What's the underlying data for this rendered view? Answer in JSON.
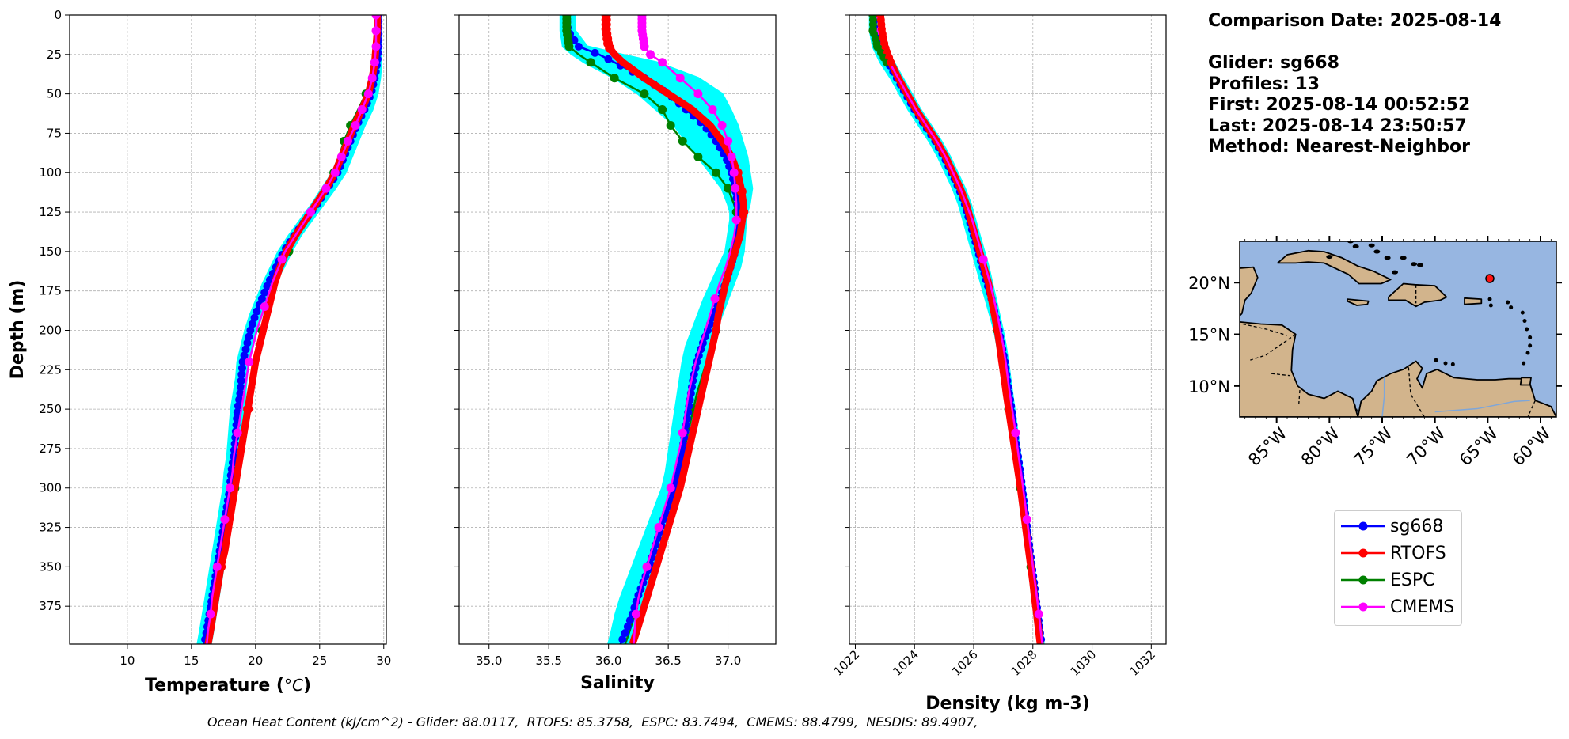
{
  "info": {
    "comparison": "Comparison Date: 2025-08-14",
    "glider": "Glider: sg668",
    "profiles": "Profiles: 13",
    "first": "First: 2025-08-14 00:52:52",
    "last": "Last: 2025-08-14 23:50:57",
    "method": "Method: Nearest-Neighbor"
  },
  "footer": "Ocean Heat Content (kJ/cm^2) - Glider: 88.0117,  RTOFS: 85.3758,  ESPC: 83.7494,  CMEMS: 88.4799,  NESDIS: 89.4907,",
  "colors": {
    "glider": "#0000ff",
    "rtofs": "#ff0000",
    "espc": "#008000",
    "cmems": "#ff00ff",
    "envelope": "#00ffff",
    "ocean": "#97b6e1",
    "land": "#d2b48c"
  },
  "legend": [
    {
      "label": "sg668",
      "color": "#0000ff"
    },
    {
      "label": "RTOFS",
      "color": "#ff0000"
    },
    {
      "label": "ESPC",
      "color": "#008000"
    },
    {
      "label": "CMEMS",
      "color": "#ff00ff"
    }
  ],
  "chart_data": [
    {
      "type": "line",
      "ylabel": "Depth (m)",
      "xlabel_main": "Temperature (",
      "xlabel_unit": "°C",
      "xlabel_end": ")",
      "xlim": [
        5.5,
        30.2
      ],
      "ylim": [
        399,
        0
      ],
      "xticks": [
        10,
        15,
        20,
        25,
        30
      ],
      "yticks": [
        0,
        25,
        50,
        75,
        100,
        125,
        150,
        175,
        200,
        225,
        250,
        275,
        300,
        325,
        350,
        375
      ],
      "depth": [
        0,
        10,
        20,
        30,
        40,
        50,
        60,
        70,
        80,
        90,
        100,
        110,
        120,
        130,
        140,
        150,
        160,
        170,
        180,
        190,
        200,
        210,
        220,
        230,
        240,
        250,
        260,
        270,
        280,
        290,
        300,
        310,
        320,
        330,
        340,
        350,
        360,
        370,
        380,
        390,
        399
      ],
      "glider": [
        29.6,
        29.6,
        29.6,
        29.5,
        29.3,
        29.0,
        28.5,
        27.9,
        27.4,
        26.9,
        26.4,
        25.6,
        24.8,
        23.9,
        23.0,
        22.2,
        21.6,
        21.0,
        20.5,
        20.0,
        19.6,
        19.3,
        19.0,
        18.9,
        18.8,
        18.6,
        18.5,
        18.4,
        18.3,
        18.1,
        18.0,
        17.8,
        17.6,
        17.4,
        17.2,
        17.0,
        16.8,
        16.6,
        16.4,
        16.2,
        16.0
      ],
      "rtofs": [
        29.5,
        29.5,
        29.4,
        29.3,
        29.1,
        28.8,
        28.3,
        27.7,
        27.2,
        26.7,
        26.2,
        25.5,
        24.7,
        23.9,
        23.1,
        22.4,
        21.9,
        21.5,
        21.2,
        20.9,
        20.6,
        20.3,
        20.0,
        19.8,
        19.6,
        19.4,
        19.2,
        19.0,
        18.8,
        18.6,
        18.4,
        18.2,
        18.0,
        17.8,
        17.6,
        17.3,
        17.1,
        16.9,
        16.7,
        16.5,
        16.3
      ],
      "espc": [
        null,
        null,
        null,
        29.3,
        29.0,
        28.6,
        28.0,
        27.4,
        26.9,
        26.5,
        26.1,
        25.4,
        24.7,
        24.0,
        23.3,
        22.6,
        22.0,
        21.5,
        21.1,
        20.8,
        20.5,
        20.2,
        20.0,
        19.8,
        19.6,
        19.4,
        19.2,
        19.0,
        18.8,
        18.6,
        18.4,
        18.2,
        18.0,
        17.8,
        17.6,
        17.3,
        17.1,
        16.9,
        16.7,
        16.5,
        16.3
      ],
      "espc_markers": [
        30,
        50,
        70,
        80,
        100,
        150,
        200,
        250,
        300,
        350
      ],
      "cmems": [
        29.4,
        29.4,
        29.4,
        29.3,
        29.1,
        28.8,
        28.3,
        27.8,
        27.2,
        26.7,
        26.2,
        25.5,
        24.7,
        23.9,
        23.1,
        22.3,
        21.8,
        21.3,
        20.9,
        20.5,
        20.1,
        19.8,
        19.5,
        19.3,
        19.1,
        18.9,
        18.7,
        18.5,
        18.3,
        18.2,
        18.0,
        17.8,
        17.6,
        17.4,
        17.2,
        17.0,
        16.8,
        16.6,
        16.5,
        16.3,
        16.2
      ],
      "cmems_markers": [
        0,
        10,
        20,
        30,
        40,
        50,
        60,
        70,
        80,
        90,
        100,
        110,
        125,
        155,
        185,
        220,
        265,
        300,
        320,
        350,
        380
      ],
      "envelope_lo": [
        29.5,
        29.5,
        29.4,
        29.2,
        28.9,
        28.6,
        28.1,
        27.5,
        27.0,
        26.5,
        26.0,
        25.2,
        24.4,
        23.5,
        22.6,
        21.8,
        21.2,
        20.6,
        20.1,
        19.6,
        19.2,
        18.9,
        18.6,
        18.5,
        18.3,
        18.1,
        18.0,
        17.9,
        17.8,
        17.6,
        17.5,
        17.3,
        17.1,
        16.9,
        16.7,
        16.5,
        16.3,
        16.1,
        15.9,
        15.7,
        15.5
      ],
      "envelope_hi": [
        29.8,
        29.8,
        29.8,
        29.8,
        29.7,
        29.5,
        29.1,
        28.5,
        28.0,
        27.5,
        27.0,
        26.2,
        25.3,
        24.4,
        23.5,
        22.8,
        22.2,
        21.5,
        21.0,
        20.5,
        20.1,
        19.7,
        19.4,
        19.3,
        19.2,
        19.1,
        19.0,
        18.9,
        18.8,
        18.6,
        18.5,
        18.3,
        18.1,
        17.9,
        17.7,
        17.5,
        17.3,
        17.1,
        16.9,
        16.7,
        16.5
      ]
    },
    {
      "type": "line",
      "xlabel_main": "Salinity",
      "xlim": [
        34.75,
        37.4
      ],
      "ylim": [
        399,
        0
      ],
      "xticks": [
        "35.0",
        "35.5",
        "36.0",
        "36.5",
        "37.0"
      ],
      "depth": [
        0,
        10,
        20,
        25,
        30,
        40,
        50,
        60,
        70,
        80,
        90,
        100,
        110,
        120,
        125,
        130,
        140,
        150,
        160,
        170,
        180,
        190,
        200,
        210,
        220,
        230,
        240,
        250,
        260,
        270,
        280,
        290,
        300,
        310,
        320,
        330,
        340,
        350,
        360,
        370,
        380,
        390,
        399
      ],
      "glider": [
        35.65,
        35.66,
        35.75,
        35.92,
        36.05,
        36.3,
        36.5,
        36.65,
        36.8,
        36.9,
        36.98,
        37.03,
        37.06,
        37.08,
        37.09,
        37.09,
        37.08,
        37.06,
        37.02,
        36.98,
        36.93,
        36.88,
        36.83,
        36.78,
        36.74,
        36.71,
        36.69,
        36.67,
        36.65,
        36.63,
        36.61,
        36.58,
        36.55,
        36.51,
        36.46,
        36.42,
        36.38,
        36.34,
        36.29,
        36.24,
        36.2,
        36.15,
        36.1
      ],
      "rtofs": [
        35.98,
        35.98,
        36.0,
        36.05,
        36.12,
        36.3,
        36.5,
        36.7,
        36.85,
        36.95,
        37.03,
        37.08,
        37.11,
        37.13,
        37.13,
        37.12,
        37.1,
        37.06,
        37.02,
        36.98,
        36.95,
        36.92,
        36.9,
        36.87,
        36.84,
        36.81,
        36.78,
        36.75,
        36.72,
        36.69,
        36.66,
        36.63,
        36.6,
        36.56,
        36.52,
        36.48,
        36.44,
        36.4,
        36.36,
        36.32,
        36.28,
        36.24,
        36.2
      ],
      "espc": [
        35.65,
        35.65,
        35.67,
        35.75,
        35.85,
        36.05,
        36.3,
        36.45,
        36.52,
        36.62,
        36.75,
        36.9,
        37.0,
        37.05,
        37.07,
        37.07,
        37.06,
        37.04,
        37.01,
        36.98,
        36.95,
        36.92,
        36.9,
        36.86,
        36.82,
        36.78,
        36.74,
        36.71,
        36.68,
        36.65,
        36.62,
        36.58,
        36.54,
        36.5,
        36.46,
        36.42,
        36.38,
        36.34,
        36.3,
        36.26,
        36.22,
        36.18,
        36.14
      ],
      "espc_markers": [
        0,
        10,
        20,
        30,
        40,
        50,
        60,
        70,
        80,
        90,
        100,
        110,
        125,
        150,
        200,
        250,
        300,
        350
      ],
      "cmems": [
        36.28,
        36.28,
        36.3,
        36.35,
        36.45,
        36.6,
        36.75,
        36.87,
        36.95,
        37.0,
        37.03,
        37.05,
        37.06,
        37.07,
        37.07,
        37.07,
        37.05,
        37.02,
        36.98,
        36.93,
        36.89,
        36.85,
        36.81,
        36.77,
        36.73,
        36.7,
        36.67,
        36.65,
        36.63,
        36.61,
        36.58,
        36.55,
        36.52,
        36.48,
        36.44,
        36.4,
        36.36,
        36.32,
        36.28,
        36.25,
        36.23,
        36.22,
        36.21
      ],
      "cmems_markers": [
        0,
        10,
        20,
        25,
        30,
        40,
        50,
        60,
        70,
        80,
        90,
        100,
        110,
        130,
        180,
        265,
        300,
        325,
        350,
        380
      ],
      "envelope_lo": [
        35.6,
        35.6,
        35.62,
        35.7,
        35.8,
        36.05,
        36.25,
        36.4,
        36.55,
        36.65,
        36.75,
        36.85,
        36.95,
        37.0,
        37.02,
        37.02,
        37.0,
        36.98,
        36.92,
        36.86,
        36.8,
        36.75,
        36.7,
        36.65,
        36.62,
        36.6,
        36.58,
        36.56,
        36.54,
        36.52,
        36.5,
        36.48,
        36.45,
        36.4,
        36.35,
        36.3,
        36.25,
        36.2,
        36.15,
        36.1,
        36.06,
        36.03,
        36.0
      ],
      "envelope_hi": [
        35.72,
        35.72,
        35.82,
        36.1,
        36.4,
        36.75,
        36.95,
        37.02,
        37.08,
        37.12,
        37.16,
        37.18,
        37.2,
        37.18,
        37.16,
        37.15,
        37.14,
        37.13,
        37.1,
        37.05,
        37.0,
        36.95,
        36.9,
        36.85,
        36.8,
        36.77,
        36.75,
        36.72,
        36.7,
        36.68,
        36.66,
        36.63,
        36.6,
        36.57,
        36.53,
        36.49,
        36.45,
        36.41,
        36.37,
        36.33,
        36.29,
        36.25,
        36.21
      ]
    },
    {
      "type": "line",
      "xlabel_main": "Density (kg m-3)",
      "xlim": [
        1021.8,
        1032.5
      ],
      "ylim": [
        399,
        0
      ],
      "xticks": [
        1022,
        1024,
        1026,
        1028,
        1030,
        1032
      ],
      "depth": [
        0,
        10,
        20,
        30,
        40,
        50,
        60,
        70,
        80,
        90,
        100,
        110,
        120,
        130,
        140,
        150,
        160,
        170,
        180,
        190,
        200,
        210,
        220,
        230,
        240,
        250,
        260,
        270,
        280,
        290,
        300,
        310,
        320,
        330,
        340,
        350,
        360,
        370,
        380,
        390,
        399
      ],
      "glider": [
        1022.6,
        1022.65,
        1022.8,
        1023.1,
        1023.4,
        1023.7,
        1024.0,
        1024.35,
        1024.7,
        1025.0,
        1025.25,
        1025.5,
        1025.7,
        1025.85,
        1026.0,
        1026.15,
        1026.3,
        1026.45,
        1026.6,
        1026.72,
        1026.85,
        1026.95,
        1027.05,
        1027.12,
        1027.2,
        1027.28,
        1027.35,
        1027.42,
        1027.5,
        1027.57,
        1027.64,
        1027.7,
        1027.77,
        1027.84,
        1027.9,
        1027.97,
        1028.04,
        1028.1,
        1028.17,
        1028.23,
        1028.3
      ],
      "rtofs": [
        1022.85,
        1022.9,
        1023.0,
        1023.2,
        1023.45,
        1023.75,
        1024.05,
        1024.4,
        1024.75,
        1025.05,
        1025.3,
        1025.55,
        1025.75,
        1025.9,
        1026.05,
        1026.2,
        1026.35,
        1026.5,
        1026.6,
        1026.7,
        1026.8,
        1026.88,
        1026.95,
        1027.03,
        1027.1,
        1027.18,
        1027.26,
        1027.34,
        1027.42,
        1027.5,
        1027.58,
        1027.65,
        1027.72,
        1027.79,
        1027.86,
        1027.93,
        1028.0,
        1028.06,
        1028.13,
        1028.19,
        1028.25
      ],
      "espc": [
        1022.6,
        1022.6,
        1022.75,
        1023.05,
        1023.4,
        1023.75,
        1024.1,
        1024.45,
        1024.8,
        1025.05,
        1025.3,
        1025.55,
        1025.75,
        1025.9,
        1026.05,
        1026.2,
        1026.35,
        1026.5,
        1026.6,
        1026.7,
        1026.8,
        1026.88,
        1026.95,
        1027.03,
        1027.1,
        1027.18,
        1027.26,
        1027.34,
        1027.42,
        1027.5,
        1027.58,
        1027.65,
        1027.72,
        1027.79,
        1027.86,
        1027.93,
        1028.0,
        1028.06,
        1028.13,
        1028.19,
        1028.25
      ],
      "espc_markers": [
        0,
        10,
        20,
        200,
        250,
        300,
        350
      ],
      "cmems": [
        1022.8,
        1022.85,
        1022.95,
        1023.15,
        1023.45,
        1023.75,
        1024.05,
        1024.4,
        1024.75,
        1025.05,
        1025.3,
        1025.55,
        1025.75,
        1025.95,
        1026.1,
        1026.25,
        1026.4,
        1026.55,
        1026.68,
        1026.8,
        1026.9,
        1027.0,
        1027.08,
        1027.15,
        1027.22,
        1027.3,
        1027.38,
        1027.45,
        1027.52,
        1027.6,
        1027.67,
        1027.74,
        1027.8,
        1027.87,
        1027.94,
        1028.0,
        1028.07,
        1028.14,
        1028.2,
        1028.26,
        1028.32
      ],
      "cmems_markers": [
        0,
        10,
        20,
        155,
        265,
        320,
        380
      ],
      "envelope_lo": [
        1022.5,
        1022.5,
        1022.6,
        1022.85,
        1023.2,
        1023.5,
        1023.8,
        1024.15,
        1024.5,
        1024.8,
        1025.05,
        1025.3,
        1025.5,
        1025.65,
        1025.8,
        1025.95,
        1026.1,
        1026.25,
        1026.4,
        1026.55,
        1026.7,
        1026.8,
        1026.9,
        1027.0,
        1027.08,
        1027.16,
        1027.24,
        1027.32,
        1027.4,
        1027.48,
        1027.55,
        1027.62,
        1027.69,
        1027.76,
        1027.83,
        1027.9,
        1027.97,
        1028.03,
        1028.1,
        1028.16,
        1028.22
      ],
      "envelope_hi": [
        1022.8,
        1022.85,
        1023.0,
        1023.3,
        1023.6,
        1023.9,
        1024.2,
        1024.55,
        1024.9,
        1025.2,
        1025.45,
        1025.7,
        1025.9,
        1026.05,
        1026.2,
        1026.35,
        1026.5,
        1026.62,
        1026.74,
        1026.86,
        1026.98,
        1027.08,
        1027.16,
        1027.23,
        1027.3,
        1027.37,
        1027.44,
        1027.51,
        1027.58,
        1027.65,
        1027.72,
        1027.78,
        1027.84,
        1027.9,
        1027.96,
        1028.03,
        1028.1,
        1028.17,
        1028.24,
        1028.3,
        1028.36
      ]
    }
  ],
  "map": {
    "lon_range": [
      -88.5,
      -58.5
    ],
    "lat_range": [
      7.0,
      24.0
    ],
    "lat_ticks": [
      {
        "value": 20,
        "label": "20°N"
      },
      {
        "value": 15,
        "label": "15°N"
      },
      {
        "value": 10,
        "label": "10°N"
      }
    ],
    "lon_ticks": [
      {
        "value": -85,
        "label": "85°W"
      },
      {
        "value": -80,
        "label": "80°W"
      },
      {
        "value": -75,
        "label": "75°W"
      },
      {
        "value": -70,
        "label": "70°W"
      },
      {
        "value": -65,
        "label": "65°W"
      },
      {
        "value": -60,
        "label": "60°W"
      }
    ],
    "glider_position": {
      "lon": -64.8,
      "lat": 20.4
    }
  }
}
